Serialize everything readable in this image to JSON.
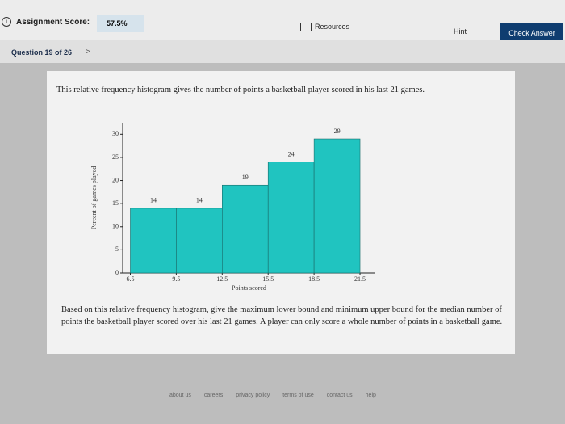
{
  "header": {
    "score_label": "Assignment Score:",
    "score": "57.5%",
    "resources": "Resources",
    "hint": "Hint",
    "check": "Check Answer"
  },
  "nav": {
    "question": "Question 19 of 26",
    "next": ">"
  },
  "question": {
    "intro": "This relative frequency histogram gives the number of points a basketball player scored in his last 21 games.",
    "prompt": "Based on this relative frequency histogram, give the maximum lower bound and minimum upper bound for the median number of points the basketball player scored over his last 21 games. A player can only score a whole number of points in a basketball game."
  },
  "chart_data": {
    "type": "histogram",
    "x_label": "Points scored",
    "y_label": "Percent of games played",
    "bins": [
      6.5,
      9.5,
      12.5,
      15.5,
      18.5,
      21.5
    ],
    "values": [
      14,
      14,
      19,
      24,
      29
    ],
    "color": "#20c4c0",
    "xlim": [
      6,
      22.5
    ],
    "xticks": [
      6.5,
      9.5,
      12.5,
      15.5,
      18.5,
      21.5
    ],
    "ylim": [
      0,
      32.5
    ],
    "yticks": [
      0,
      5,
      10,
      15,
      20,
      25,
      30
    ],
    "grid": false
  },
  "footer": {
    "links": [
      "about us",
      "careers",
      "privacy policy",
      "terms of use",
      "contact us",
      "help"
    ]
  }
}
